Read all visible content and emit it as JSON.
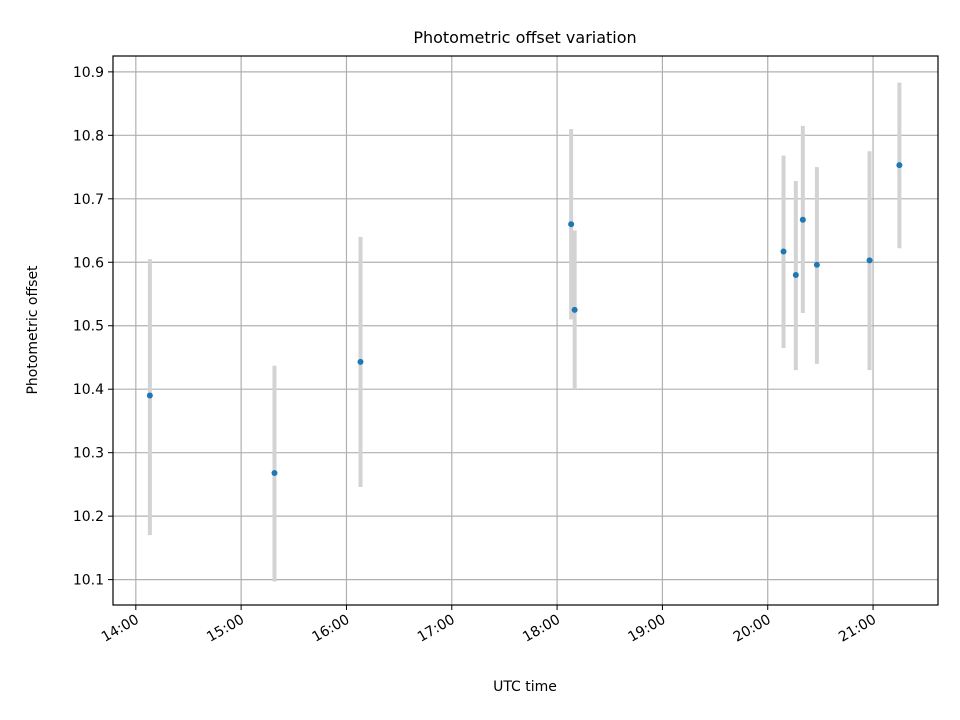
{
  "chart_data": {
    "type": "scatter",
    "title": "Photometric offset variation",
    "xlabel": "UTC time",
    "ylabel": "Photometric offset",
    "x_axis": {
      "kind": "time",
      "range": [
        "13:47",
        "21:37"
      ],
      "ticks": [
        "14:00",
        "15:00",
        "16:00",
        "17:00",
        "18:00",
        "19:00",
        "20:00",
        "21:00"
      ]
    },
    "y_axis": {
      "range": [
        10.06,
        10.925
      ],
      "ticks": [
        10.1,
        10.2,
        10.3,
        10.4,
        10.5,
        10.6,
        10.7,
        10.8,
        10.9
      ],
      "tick_labels": [
        "10.1",
        "10.2",
        "10.3",
        "10.4",
        "10.5",
        "10.6",
        "10.7",
        "10.8",
        "10.9"
      ]
    },
    "grid": true,
    "series": [
      {
        "marker_color": "#1f77b4",
        "errorbar_color": "#d3d3d3",
        "points": [
          {
            "time": "14:08",
            "y": 10.39,
            "yerr_low": 10.17,
            "yerr_high": 10.605
          },
          {
            "time": "15:19",
            "y": 10.268,
            "yerr_low": 10.097,
            "yerr_high": 10.437
          },
          {
            "time": "16:08",
            "y": 10.443,
            "yerr_low": 10.246,
            "yerr_high": 10.64
          },
          {
            "time": "18:08",
            "y": 10.66,
            "yerr_low": 10.51,
            "yerr_high": 10.81
          },
          {
            "time": "18:10",
            "y": 10.525,
            "yerr_low": 10.4,
            "yerr_high": 10.65
          },
          {
            "time": "20:09",
            "y": 10.617,
            "yerr_low": 10.465,
            "yerr_high": 10.768
          },
          {
            "time": "20:16",
            "y": 10.58,
            "yerr_low": 10.43,
            "yerr_high": 10.728
          },
          {
            "time": "20:20",
            "y": 10.667,
            "yerr_low": 10.52,
            "yerr_high": 10.815
          },
          {
            "time": "20:28",
            "y": 10.596,
            "yerr_low": 10.44,
            "yerr_high": 10.75
          },
          {
            "time": "20:58",
            "y": 10.603,
            "yerr_low": 10.43,
            "yerr_high": 10.775
          },
          {
            "time": "21:15",
            "y": 10.753,
            "yerr_low": 10.622,
            "yerr_high": 10.883
          }
        ]
      }
    ]
  }
}
